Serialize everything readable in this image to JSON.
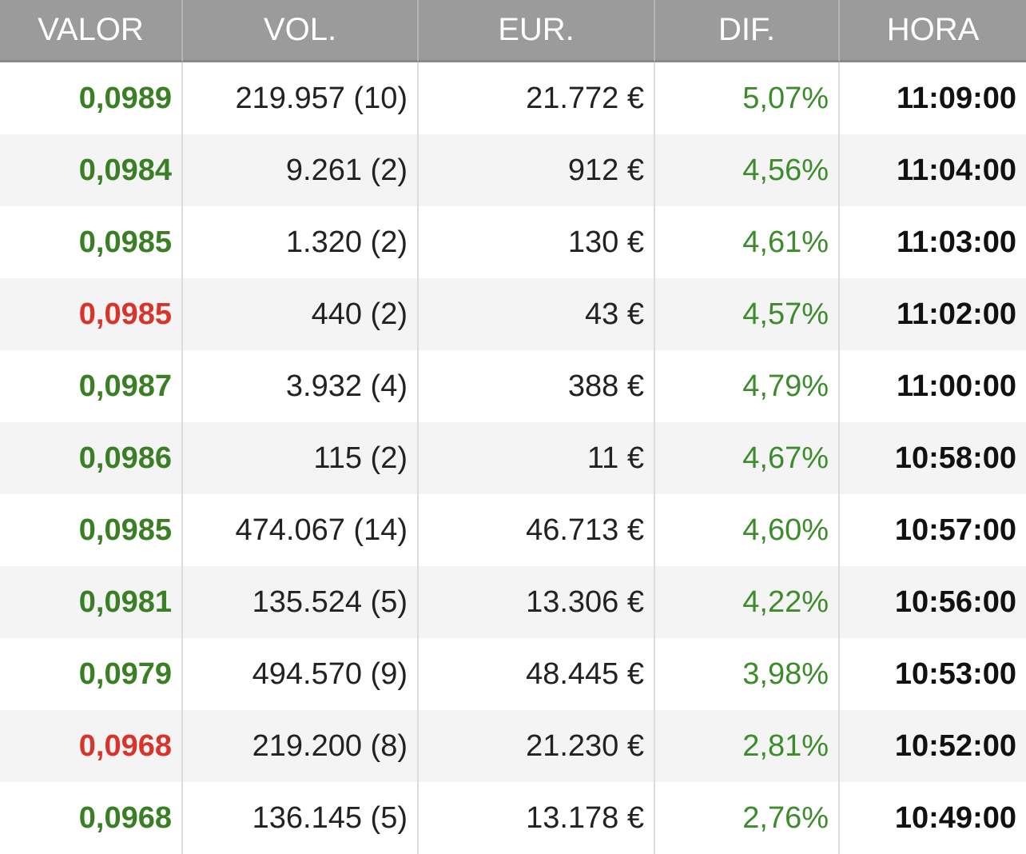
{
  "table": {
    "headers": [
      "VALOR",
      "VOL.",
      "EUR.",
      "DIF.",
      "HORA"
    ],
    "rows": [
      [
        "0,0989",
        "219.957 (10)",
        "21.772 €",
        "5,07%",
        "11:09:00"
      ],
      [
        "0,0984",
        "9.261 (2)",
        "912 €",
        "4,56%",
        "11:04:00"
      ],
      [
        "0,0985",
        "1.320 (2)",
        "130 €",
        "4,61%",
        "11:03:00"
      ],
      [
        "0,0985",
        "440 (2)",
        "43 €",
        "4,57%",
        "11:02:00"
      ],
      [
        "0,0987",
        "3.932 (4)",
        "388 €",
        "4,79%",
        "11:00:00"
      ],
      [
        "0,0986",
        "115 (2)",
        "11 €",
        "4,67%",
        "10:58:00"
      ],
      [
        "0,0985",
        "474.067 (14)",
        "46.713 €",
        "4,60%",
        "10:57:00"
      ],
      [
        "0,0981",
        "135.524 (5)",
        "13.306 €",
        "4,22%",
        "10:56:00"
      ],
      [
        "0,0979",
        "494.570 (9)",
        "48.445 €",
        "3,98%",
        "10:53:00"
      ],
      [
        "0,0968",
        "219.200 (8)",
        "21.230 €",
        "2,81%",
        "10:52:00"
      ],
      [
        "0,0968",
        "136.145 (5)",
        "13.178 €",
        "2,76%",
        "10:49:00"
      ]
    ],
    "valor_colors": [
      "#3a7f25",
      "#3a7f25",
      "#3a7f25",
      "#d9342b",
      "#3a7f25",
      "#3a7f25",
      "#3a7f25",
      "#3a7f25",
      "#3a7f25",
      "#d9342b",
      "#3a7f25"
    ]
  }
}
